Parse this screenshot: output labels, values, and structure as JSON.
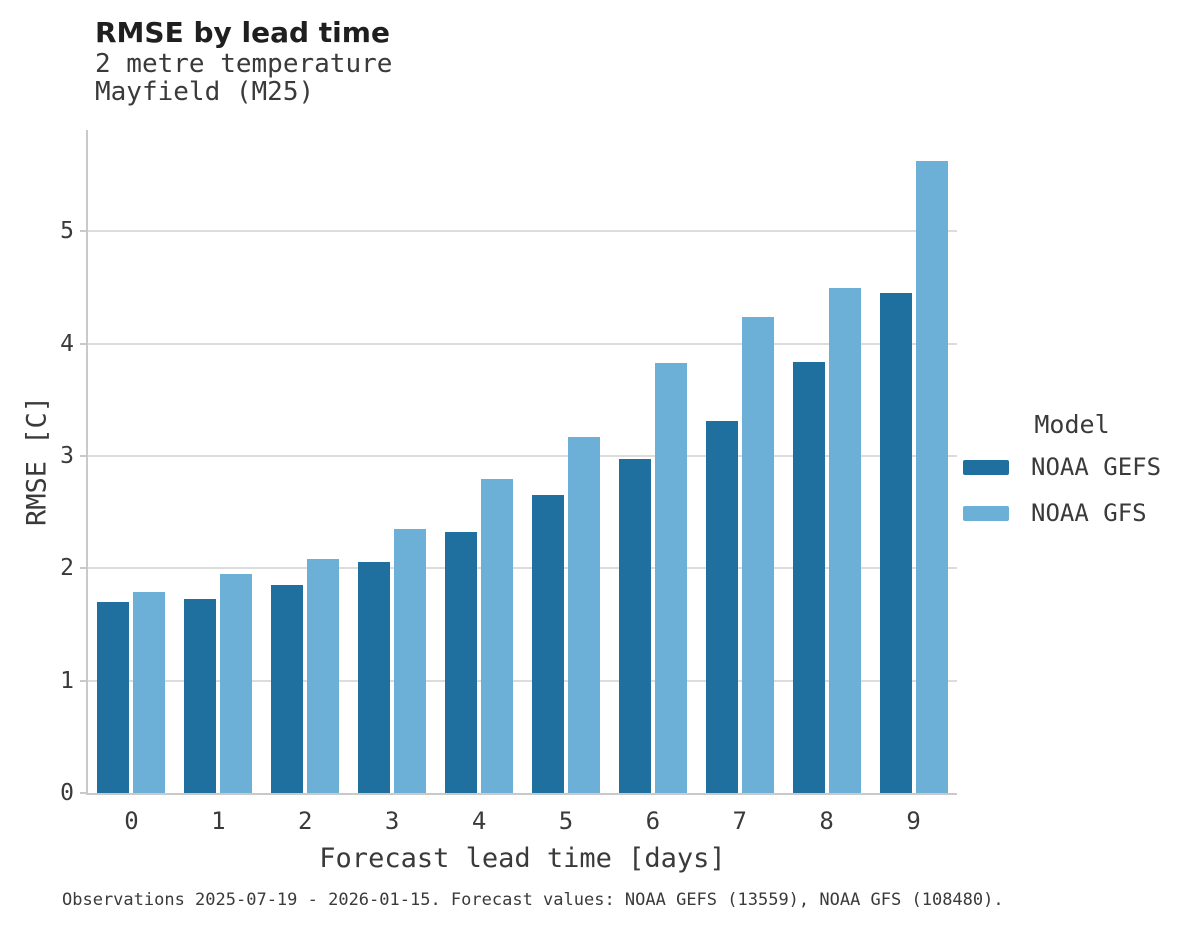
{
  "header": {
    "title": "RMSE by lead time",
    "subtitle_line1": "2 metre temperature",
    "subtitle_line2": "Mayfield (M25)"
  },
  "legend": {
    "title": "Model",
    "entries": [
      {
        "label": "NOAA GEFS",
        "color": "#1f6f9f"
      },
      {
        "label": "NOAA GFS",
        "color": "#6cb0d8"
      }
    ]
  },
  "caption": "Observations 2025-07-19 - 2026-01-15. Forecast values: NOAA GEFS (13559), NOAA GFS (108480).",
  "chart_data": {
    "type": "bar",
    "title": "RMSE by lead time",
    "subtitle": [
      "2 metre temperature",
      "Mayfield (M25)"
    ],
    "xlabel": "Forecast lead time [days]",
    "ylabel": "RMSE [C]",
    "categories": [
      "0",
      "1",
      "2",
      "3",
      "4",
      "5",
      "6",
      "7",
      "8",
      "9"
    ],
    "series": [
      {
        "name": "NOAA GEFS",
        "color": "#1f6f9f",
        "values": [
          1.7,
          1.73,
          1.85,
          2.06,
          2.32,
          2.65,
          2.97,
          3.31,
          3.84,
          4.45
        ]
      },
      {
        "name": "NOAA GFS",
        "color": "#6cb0d8",
        "values": [
          1.79,
          1.95,
          2.08,
          2.35,
          2.79,
          3.17,
          3.83,
          4.24,
          4.49,
          5.62
        ]
      }
    ],
    "yticks": [
      0,
      1,
      2,
      3,
      4,
      5
    ],
    "ylim": [
      0,
      5.9
    ],
    "grid": true,
    "legend_title": "Model",
    "legend_position": "right"
  },
  "colors": {
    "gridline": "#dcdcdc",
    "spine": "#c9c9c9",
    "text": "#3a3a3a",
    "title_text": "#1f1f1f"
  }
}
